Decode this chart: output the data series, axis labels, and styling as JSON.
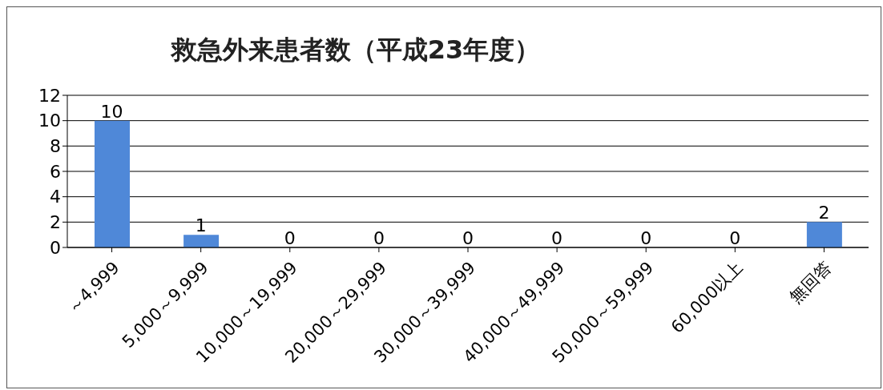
{
  "chart_data": {
    "type": "bar",
    "title": "救急外来患者数（平成23年度）",
    "categories": [
      "～4,999",
      "5,000～9,999",
      "10,000～19,999",
      "20,000～29,999",
      "30,000～39,999",
      "40,000～49,999",
      "50,000～59,999",
      "60,000以上",
      "無回答"
    ],
    "values": [
      10,
      1,
      0,
      0,
      0,
      0,
      0,
      0,
      2
    ],
    "color": "#4f88d8",
    "ylim": [
      0,
      12
    ],
    "yticks": [
      0,
      2,
      4,
      6,
      8,
      10,
      12
    ],
    "grid": "y",
    "data_labels": true,
    "legend": false
  }
}
